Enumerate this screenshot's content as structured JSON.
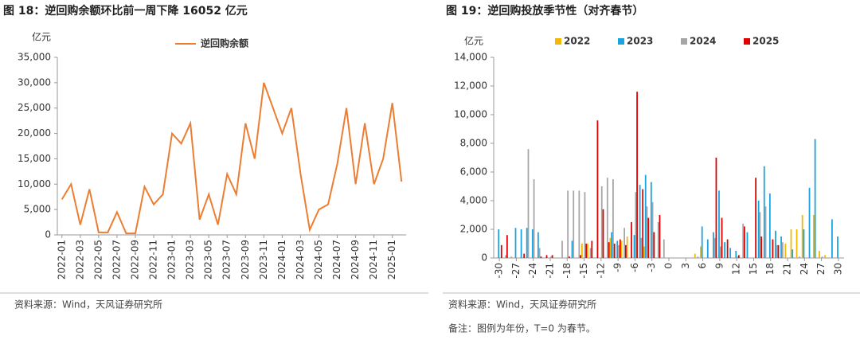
{
  "chart_data": [
    {
      "type": "line",
      "title": "图 18：逆回购余额环比前一周下降 16052 亿元",
      "unit": "亿元",
      "source": "资料来源：Wind，天风证券研究所",
      "categories": [
        "2022-01",
        null,
        "2022-03",
        null,
        "2022-05",
        null,
        "2022-07",
        null,
        "2022-09",
        null,
        "2022-11",
        null,
        "2023-01",
        null,
        "2023-03",
        null,
        "2023-05",
        null,
        "2023-07",
        null,
        "2023-09",
        null,
        "2023-11",
        null,
        "2024-01",
        null,
        "2024-03",
        null,
        "2024-05",
        null,
        "2024-07",
        null,
        "2024-09",
        null,
        "2024-11",
        null,
        "2025-01",
        null
      ],
      "series": [
        {
          "name": "逆回购余额",
          "color": "#ed7d31",
          "values": [
            7000,
            10000,
            2000,
            9000,
            500,
            500,
            4500,
            300,
            300,
            9500,
            6000,
            8000,
            20000,
            18000,
            22000,
            3000,
            8000,
            2000,
            12000,
            8000,
            22000,
            15000,
            30000,
            25000,
            20000,
            25000,
            12000,
            1000,
            5000,
            6000,
            14000,
            25000,
            10000,
            22000,
            10000,
            15000,
            26000,
            10500
          ]
        }
      ],
      "ylim": [
        0,
        35000
      ],
      "yticks": [
        0,
        {
          "value": 5000,
          "label": "5,000"
        },
        {
          "value": 10000,
          "label": "10,000"
        },
        {
          "value": 15000,
          "label": "15,000"
        },
        {
          "value": 20000,
          "label": "20,000"
        },
        {
          "value": 25000,
          "label": "25,000"
        },
        {
          "value": 30000,
          "label": "30,000"
        },
        {
          "value": 35000,
          "label": "35,000"
        }
      ],
      "grid": false
    },
    {
      "type": "bar",
      "title": "图 19：逆回购投放季节性（对齐春节）",
      "unit": "亿元",
      "source": "资料来源：Wind，天风证券研究所",
      "note": "备注：图例为年份，T=0 为春节。",
      "x": [
        -30,
        -29,
        -28,
        -27,
        -26,
        -25,
        -24,
        -23,
        -22,
        -21,
        -20,
        -19,
        -18,
        -17,
        -16,
        -15,
        -14,
        -13,
        -12,
        -11,
        -10,
        -9,
        -8,
        -7,
        -6,
        -5,
        -4,
        -3,
        -2,
        -1,
        0,
        1,
        2,
        3,
        4,
        5,
        6,
        7,
        8,
        9,
        10,
        11,
        12,
        13,
        14,
        15,
        16,
        17,
        18,
        19,
        20,
        21,
        22,
        23,
        24,
        25,
        26,
        27,
        28,
        29,
        30
      ],
      "series": [
        {
          "name": "2022",
          "color": "#f5b800",
          "values": [
            null,
            null,
            null,
            null,
            null,
            null,
            null,
            null,
            null,
            null,
            null,
            null,
            null,
            null,
            null,
            1000,
            1000,
            null,
            null,
            null,
            1400,
            null,
            1200,
            1500,
            null,
            null,
            800,
            null,
            null,
            null,
            null,
            null,
            null,
            null,
            null,
            300,
            800,
            null,
            null,
            null,
            null,
            null,
            null,
            null,
            null,
            null,
            null,
            null,
            null,
            null,
            null,
            1000,
            2000,
            2000,
            3000,
            null,
            3000,
            500,
            200,
            null,
            null
          ]
        },
        {
          "name": "2023",
          "color": "#1aa3df",
          "values": [
            2000,
            null,
            null,
            2100,
            2000,
            2100,
            2000,
            1800,
            null,
            null,
            null,
            null,
            null,
            1200,
            null,
            null,
            null,
            null,
            null,
            null,
            1800,
            1200,
            null,
            null,
            1600,
            5100,
            5800,
            5300,
            null,
            null,
            null,
            null,
            null,
            null,
            null,
            null,
            2200,
            1300,
            1800,
            4700,
            1100,
            700,
            500,
            null,
            1800,
            null,
            4000,
            6400,
            4500,
            1900,
            1500,
            null,
            600,
            null,
            2000,
            4900,
            8300,
            null,
            null,
            2700,
            1500
          ]
        },
        {
          "name": "2024",
          "color": "#a6a6a6",
          "values": [
            null,
            200,
            100,
            null,
            null,
            7600,
            5500,
            700,
            null,
            100,
            null,
            1200,
            4700,
            4700,
            4700,
            4600,
            700,
            null,
            5000,
            5600,
            5500,
            900,
            2100,
            null,
            4600,
            1400,
            3600,
            3900,
            2500,
            1300,
            null,
            null,
            null,
            null,
            null,
            100,
            null,
            null,
            1400,
            800,
            null,
            null,
            100,
            2400,
            null,
            null,
            3200,
            3600,
            null,
            900,
            1100,
            null,
            null,
            100,
            null,
            null,
            null,
            100,
            null,
            null,
            null
          ]
        },
        {
          "name": "2025",
          "color": "#e00000",
          "values": [
            900,
            1600,
            null,
            null,
            300,
            null,
            null,
            100,
            200,
            200,
            null,
            null,
            100,
            null,
            200,
            1000,
            1200,
            9600,
            3400,
            1100,
            1000,
            1300,
            900,
            2500,
            11600,
            4800,
            2800,
            1800,
            3000,
            null,
            null,
            null,
            null,
            null,
            null,
            null,
            null,
            null,
            7000,
            2800,
            1300,
            null,
            200,
            2200,
            null,
            5600,
            1500,
            null,
            1300,
            900,
            null,
            null,
            null,
            null,
            null,
            null,
            null,
            null,
            null,
            null,
            null
          ]
        }
      ],
      "xlim": [
        -31,
        31
      ],
      "xticks": [
        -30,
        -27,
        -24,
        -21,
        -18,
        -15,
        -12,
        -9,
        -6,
        -3,
        0,
        3,
        6,
        9,
        12,
        15,
        18,
        21,
        24,
        27,
        30
      ],
      "ylim": [
        0,
        14000
      ],
      "yticks": [
        0,
        {
          "value": 2000,
          "label": "2,000"
        },
        {
          "value": 4000,
          "label": "4,000"
        },
        {
          "value": 6000,
          "label": "6,000"
        },
        {
          "value": 8000,
          "label": "8,000"
        },
        {
          "value": 10000,
          "label": "10,000"
        },
        {
          "value": 12000,
          "label": "12,000"
        },
        {
          "value": 14000,
          "label": "14,000"
        }
      ],
      "grid": false
    }
  ]
}
